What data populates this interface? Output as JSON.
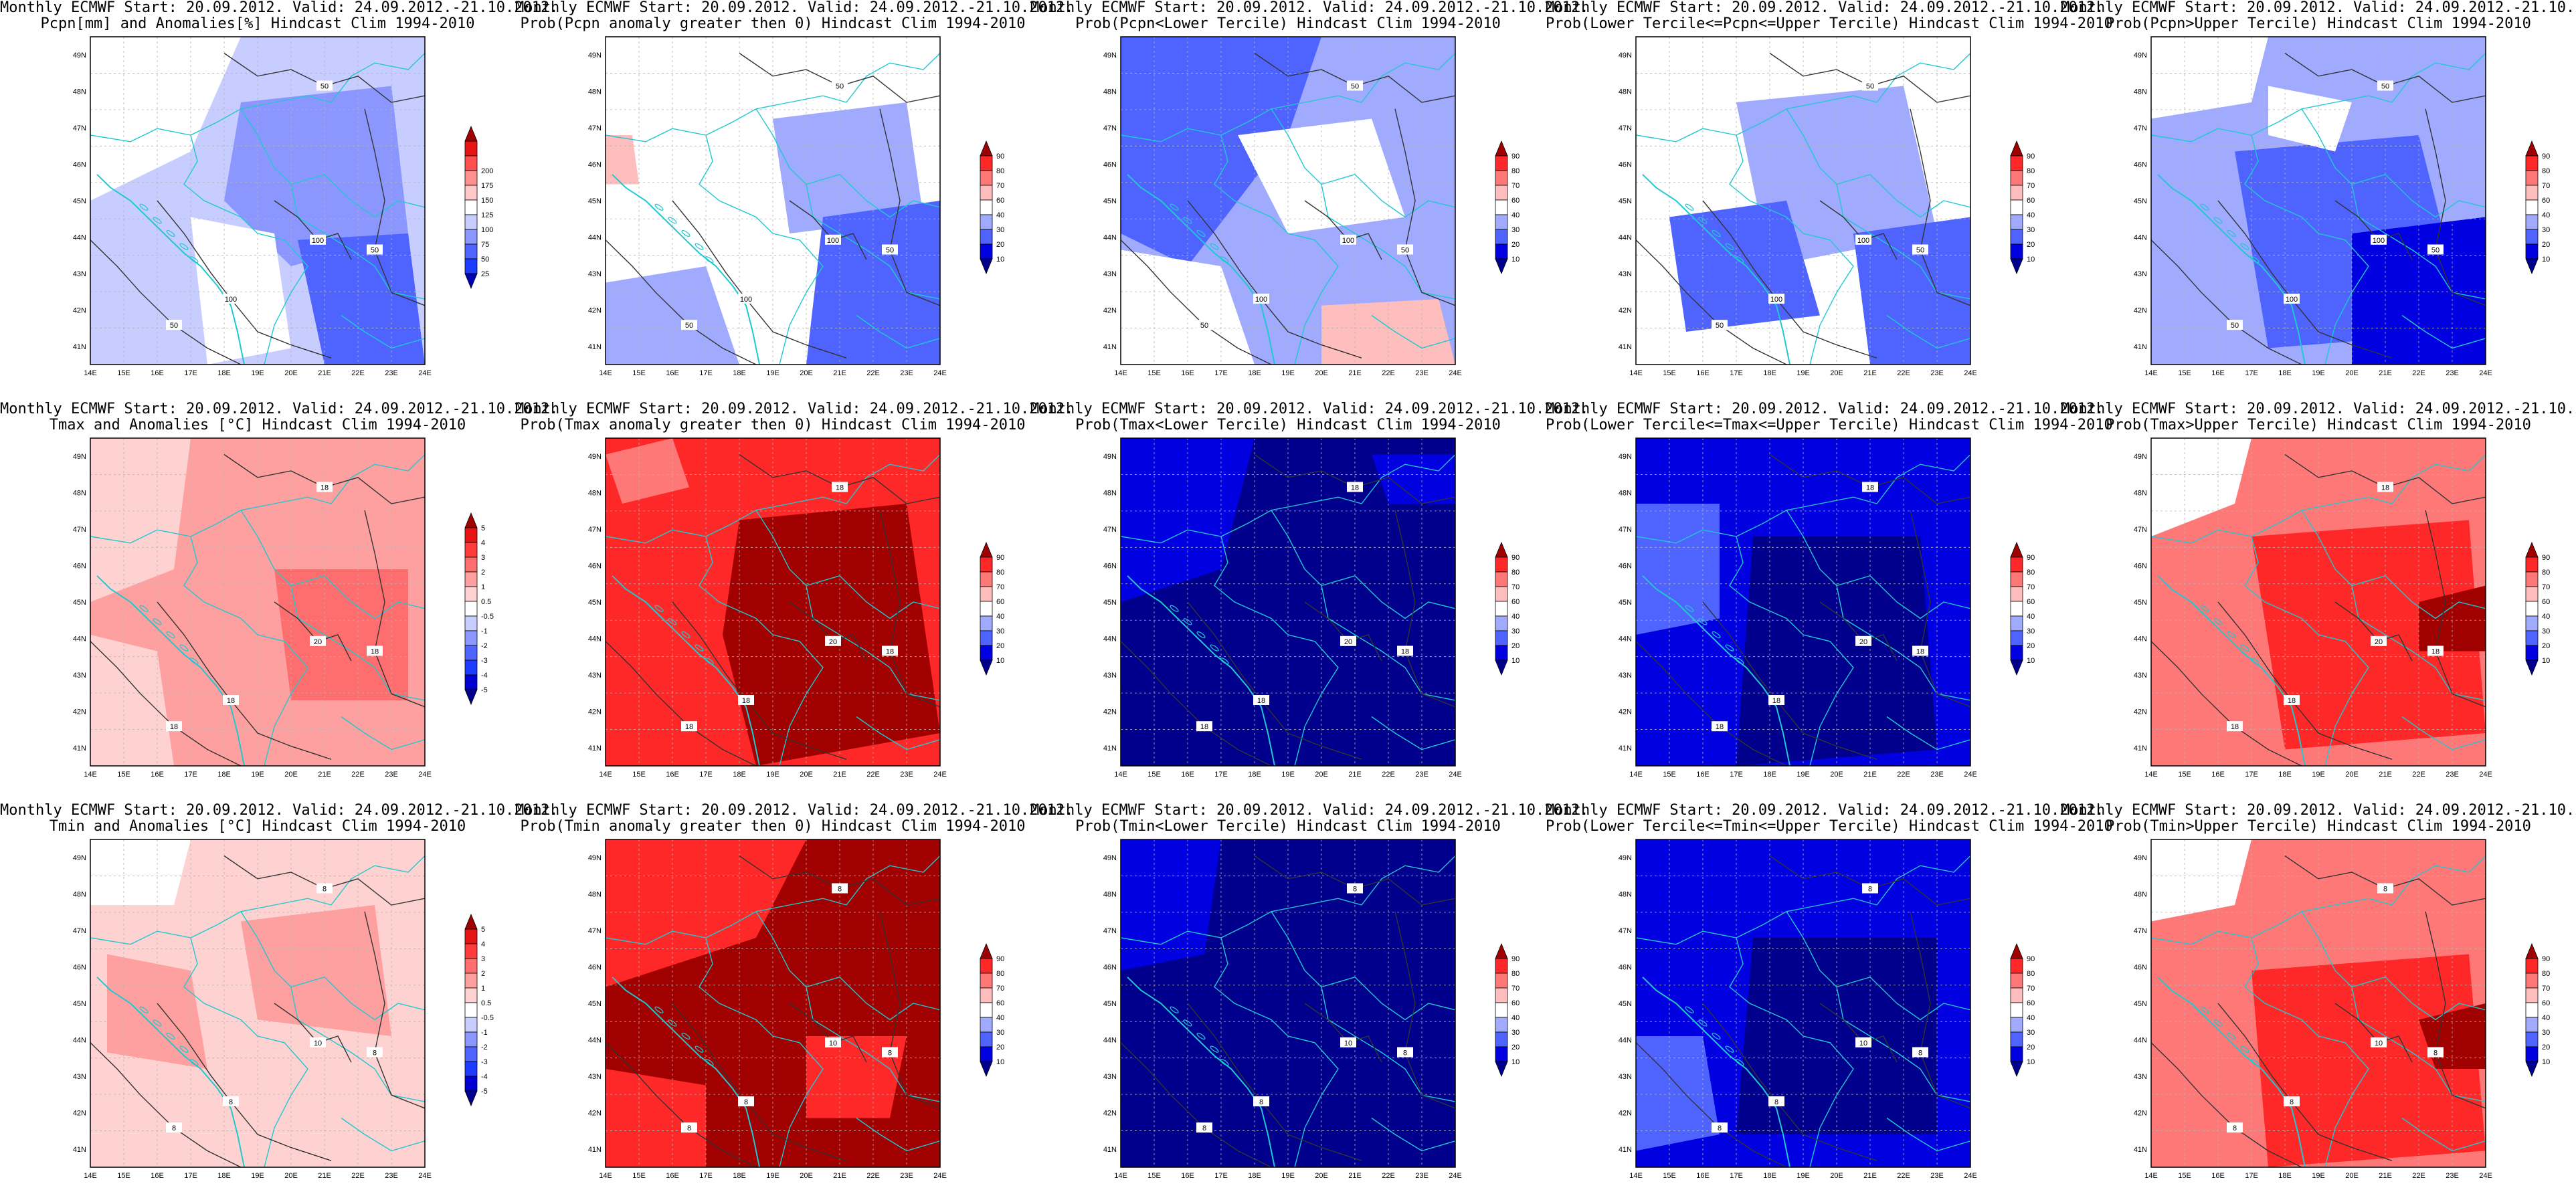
{
  "header_line": "Monthly ECMWF Start: 20.09.2012. Valid: 24.09.2012.-21.10.2012.",
  "lat_labels": [
    "41N",
    "42N",
    "43N",
    "44N",
    "45N",
    "46N",
    "47N",
    "48N",
    "49N"
  ],
  "lon_labels": [
    "14E",
    "15E",
    "16E",
    "17E",
    "18E",
    "19E",
    "20E",
    "21E",
    "22E",
    "23E",
    "24E"
  ],
  "colorbars": {
    "precip_anom": {
      "labels": [
        "25",
        "50",
        "75",
        "100",
        "125",
        "150",
        "175",
        "200"
      ],
      "colors": [
        "#0000b0",
        "#1e3cff",
        "#4f64ff",
        "#8c96ff",
        "#c8cdff",
        "#ffffff",
        "#ffc8c8",
        "#ff9090",
        "#ff5050",
        "#e61414",
        "#a00000"
      ]
    },
    "temp_anom": {
      "labels": [
        "-5",
        "-4",
        "-3",
        "-2",
        "-1",
        "-0.5",
        "0.5",
        "1",
        "2",
        "3",
        "4",
        "5"
      ],
      "colors": [
        "#00008c",
        "#0000d0",
        "#1e3cff",
        "#4f64ff",
        "#8c96ff",
        "#c8cdff",
        "#ffffff",
        "#ffd2d2",
        "#ffa0a0",
        "#ff6e6e",
        "#ff3c3c",
        "#e61414",
        "#a00000"
      ]
    },
    "prob": {
      "labels": [
        "10",
        "20",
        "30",
        "40",
        "60",
        "70",
        "80",
        "90"
      ],
      "colors": [
        "#00008c",
        "#0000e0",
        "#4f64ff",
        "#a0aaff",
        "#ffffff",
        "#ffbebe",
        "#ff7878",
        "#ff2828",
        "#a00000"
      ]
    }
  },
  "panels": [
    {
      "title": "Pcpn[mm] and Anomalies[%] Hindcast Clim 1994-2010",
      "cbar": "precip_anom",
      "fill": "#c8cdff",
      "blobs": [
        {
          "c": "#8c96ff",
          "p": "0.45,0.2 0.9,0.15 0.95,0.6 0.6,0.7 0.4,0.5"
        },
        {
          "c": "#4f64ff",
          "p": "0.62,0.62 0.95,0.6 1,1 0.7,1"
        },
        {
          "c": "#ffffff",
          "p": "0,0 0.45,0 0.3,0.35 0,0.5"
        },
        {
          "c": "#ffffff",
          "p": "0.3,0.55 0.55,0.6 0.6,0.95 0.35,1"
        }
      ],
      "contours": [
        "50",
        "50",
        "50",
        "100",
        "100"
      ]
    },
    {
      "title": "Prob(Pcpn anomaly greater then 0) Hindcast Clim 1994-2010",
      "cbar": "prob",
      "fill": "#ffffff",
      "blobs": [
        {
          "c": "#a0aaff",
          "p": "0.5,0.25 0.9,0.2 0.95,0.55 0.55,0.6"
        },
        {
          "c": "#4f64ff",
          "p": "0.65,0.55 1,0.5 1,1 0.6,1"
        },
        {
          "c": "#a0aaff",
          "p": "0,0.75 0.3,0.7 0.4,1 0,1"
        },
        {
          "c": "#ffbebe",
          "p": "0,0.3 0.08,0.3 0.1,0.45 0,0.45"
        }
      ],
      "contours": [
        "50",
        "50",
        "50",
        "100",
        "100"
      ]
    },
    {
      "title": "Prob(Pcpn<Lower Tercile) Hindcast Clim 1994-2010",
      "cbar": "prob",
      "fill": "#a0aaff",
      "blobs": [
        {
          "c": "#4f64ff",
          "p": "0,0 0.6,0 0.5,0.3 0.2,0.7 0,0.6"
        },
        {
          "c": "#ffffff",
          "p": "0.35,0.3 0.75,0.25 0.85,0.55 0.5,0.6"
        },
        {
          "c": "#ffbebe",
          "p": "0.6,0.82 0.95,0.8 1,1 0.6,1"
        },
        {
          "c": "#ffffff",
          "p": "0,0.65 0.3,0.7 0.4,1 0,1"
        }
      ],
      "contours": [
        "50",
        "50",
        "50",
        "100",
        "100"
      ]
    },
    {
      "title": "Prob(Lower Tercile<=Pcpn<=Upper Tercile) Hindcast Clim 1994-2010",
      "cbar": "prob",
      "fill": "#ffffff",
      "blobs": [
        {
          "c": "#a0aaff",
          "p": "0.3,0.2 0.8,0.15 0.9,0.6 0.4,0.7"
        },
        {
          "c": "#4f64ff",
          "p": "0.1,0.55 0.45,0.5 0.55,0.85 0.15,0.9"
        },
        {
          "c": "#4f64ff",
          "p": "0.65,0.6 1,0.55 1,1 0.7,1"
        }
      ],
      "contours": [
        "50",
        "50",
        "50",
        "100",
        "100"
      ]
    },
    {
      "title": "Prob(Pcpn>Upper Tercile) Hindcast Clim 1994-2010",
      "cbar": "prob",
      "fill": "#a0aaff",
      "blobs": [
        {
          "c": "#4f64ff",
          "p": "0.25,0.35 0.8,0.3 0.95,0.9 0.35,0.95"
        },
        {
          "c": "#0000e0",
          "p": "0.6,0.6 1,0.55 1,1 0.6,1"
        },
        {
          "c": "#ffffff",
          "p": "0,0 0.35,0 0.3,0.2 0,0.25"
        },
        {
          "c": "#ffffff",
          "p": "0.35,0.15 0.6,0.2 0.55,0.35 0.35,0.3"
        }
      ],
      "contours": [
        "50",
        "50",
        "50",
        "100",
        "100"
      ]
    },
    {
      "title": "Tmax and Anomalies [°C] Hindcast Clim 1994-2010",
      "cbar": "temp_anom",
      "fill": "#ffa0a0",
      "blobs": [
        {
          "c": "#ffd2d2",
          "p": "0,0 0.3,0 0.25,0.4 0,0.5"
        },
        {
          "c": "#ff6e6e",
          "p": "0.55,0.4 0.95,0.4 0.95,0.8 0.6,0.8"
        },
        {
          "c": "#ffd2d2",
          "p": "0,0.6 0.2,0.65 0.25,1 0,1"
        }
      ],
      "contours": [
        "18",
        "18",
        "18",
        "18",
        "20"
      ]
    },
    {
      "title": "Prob(Tmax anomaly greater then 0) Hindcast Clim 1994-2010",
      "cbar": "prob",
      "fill": "#ff2828",
      "blobs": [
        {
          "c": "#a00000",
          "p": "0.4,0.25 0.9,0.2 1,0.9 0.45,1 0.35,0.6"
        },
        {
          "c": "#ff7878",
          "p": "0,0.05 0.2,0 0.25,0.15 0.05,0.2"
        }
      ],
      "contours": [
        "18",
        "18",
        "18",
        "18",
        "20"
      ]
    },
    {
      "title": "Prob(Tmax<Lower Tercile) Hindcast Clim 1994-2010",
      "cbar": "prob",
      "fill": "#00008c",
      "blobs": [
        {
          "c": "#0000e0",
          "p": "0,0 0.4,0 0.3,0.4 0,0.5"
        },
        {
          "c": "#0000e0",
          "p": "0.75,0.05 1,0.05 1,0.2 0.8,0.2"
        }
      ],
      "contours": [
        "18",
        "18",
        "18",
        "18",
        "20"
      ]
    },
    {
      "title": "Prob(Lower Tercile<=Tmax<=Upper Tercile) Hindcast Clim 1994-2010",
      "cbar": "prob",
      "fill": "#0000e0",
      "blobs": [
        {
          "c": "#00008c",
          "p": "0.35,0.3 0.85,0.3 0.9,0.95 0.3,1"
        },
        {
          "c": "#4f64ff",
          "p": "0,0.2 0.25,0.2 0.25,0.55 0,0.6"
        }
      ],
      "contours": [
        "18",
        "18",
        "18",
        "18",
        "20"
      ]
    },
    {
      "title": "Prob(Tmax>Upper Tercile) Hindcast Clim 1994-2010",
      "cbar": "prob",
      "fill": "#ff7878",
      "blobs": [
        {
          "c": "#ff2828",
          "p": "0.3,0.3 0.95,0.25 1,0.9 0.4,0.95"
        },
        {
          "c": "#ffffff",
          "p": "0,0 0.3,0 0.25,0.2 0,0.3"
        },
        {
          "c": "#a00000",
          "p": "0.8,0.5 1,0.45 1,0.65 0.8,0.65"
        }
      ],
      "contours": [
        "18",
        "18",
        "18",
        "18",
        "20"
      ]
    },
    {
      "title": "Tmin and Anomalies [°C] Hindcast Clim 1994-2010",
      "cbar": "temp_anom",
      "fill": "#ffd2d2",
      "blobs": [
        {
          "c": "#ffa0a0",
          "p": "0.45,0.25 0.85,0.2 0.9,0.6 0.5,0.55"
        },
        {
          "c": "#ffa0a0",
          "p": "0.05,0.35 0.3,0.4 0.35,0.7 0.05,0.65"
        },
        {
          "c": "#ffffff",
          "p": "0,0 0.3,0 0.25,0.2 0,0.2"
        }
      ],
      "contours": [
        "8",
        "8",
        "8",
        "8",
        "10"
      ]
    },
    {
      "title": "Prob(Tmin anomaly greater then 0) Hindcast Clim 1994-2010",
      "cbar": "prob",
      "fill": "#a00000",
      "blobs": [
        {
          "c": "#ff2828",
          "p": "0,0 0.6,0 0.45,0.3 0,0.45"
        },
        {
          "c": "#ff2828",
          "p": "0.6,0.6 0.9,0.6 0.85,0.85 0.6,0.85"
        },
        {
          "c": "#ff2828",
          "p": "0,0.7 0.3,0.75 0.3,1 0,1"
        }
      ],
      "contours": [
        "8",
        "8",
        "8",
        "8",
        "10"
      ]
    },
    {
      "title": "Prob(Tmin<Lower Tercile) Hindcast Clim 1994-2010",
      "cbar": "prob",
      "fill": "#00008c",
      "blobs": [
        {
          "c": "#0000e0",
          "p": "0,0 0.3,0 0.25,0.35 0,0.4"
        }
      ],
      "contours": [
        "8",
        "8",
        "8",
        "8",
        "10"
      ]
    },
    {
      "title": "Prob(Lower Tercile<=Tmin<=Upper Tercile) Hindcast Clim 1994-2010",
      "cbar": "prob",
      "fill": "#0000e0",
      "blobs": [
        {
          "c": "#00008c",
          "p": "0.35,0.3 0.9,0.3 0.9,0.9 0.3,0.9"
        },
        {
          "c": "#4f64ff",
          "p": "0,0.6 0.2,0.6 0.25,0.9 0,0.95"
        }
      ],
      "contours": [
        "8",
        "8",
        "8",
        "8",
        "10"
      ]
    },
    {
      "title": "Prob(Tmin>Upper Tercile) Hindcast Clim 1994-2010",
      "cbar": "prob",
      "fill": "#ff7878",
      "blobs": [
        {
          "c": "#ffffff",
          "p": "0,0 0.3,0 0.25,0.2 0,0.25"
        },
        {
          "c": "#ff2828",
          "p": "0.3,0.4 0.95,0.35 1,0.95 0.35,1"
        },
        {
          "c": "#a00000",
          "p": "0.8,0.55 1,0.5 1,0.7 0.85,0.7"
        }
      ],
      "contours": [
        "8",
        "8",
        "8",
        "8",
        "10"
      ]
    }
  ]
}
